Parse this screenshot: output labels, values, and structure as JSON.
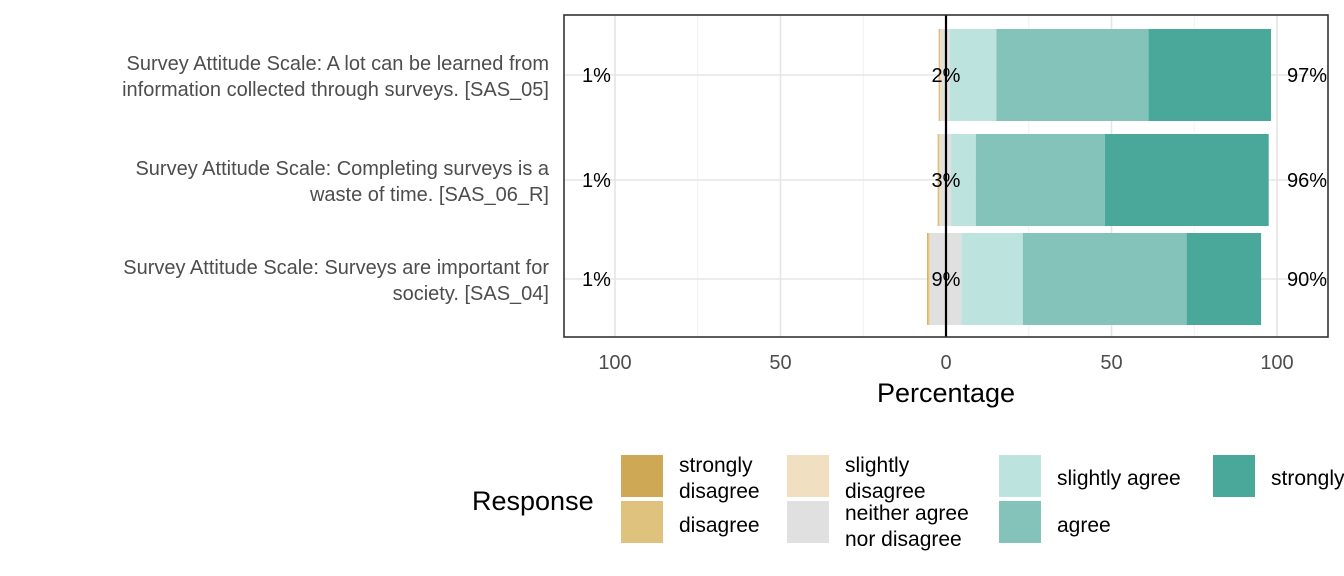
{
  "chart_data": {
    "type": "bar",
    "orientation": "horizontal",
    "stacking": "diverging",
    "xlabel": "Percentage",
    "x_tick_labels": [
      "100",
      "50",
      "0",
      "50",
      "100"
    ],
    "x_ticks": [
      -100,
      -50,
      0,
      50,
      100
    ],
    "xlim": [
      -100,
      100
    ],
    "grid": true,
    "legend": {
      "title": "Response",
      "position": "bottom",
      "entries": [
        {
          "label": "strongly disagree",
          "color": "#cfa855"
        },
        {
          "label": "disagree",
          "color": "#dfc27d"
        },
        {
          "label": "slightly disagree",
          "color": "#f0dfc1"
        },
        {
          "label": "neither agree nor disagree",
          "color": "#e0e0e0"
        },
        {
          "label": "slightly agree",
          "color": "#bde3df"
        },
        {
          "label": "agree",
          "color": "#84c3b9"
        },
        {
          "label": "strongly",
          "color": "#4aa89a"
        }
      ]
    },
    "categories": [
      "Survey Attitude Scale: A lot can be learned from information collected through surveys. [SAS_05]",
      "Survey Attitude Scale: Completing surveys is a waste of time. [SAS_06_R]",
      "Survey Attitude Scale: Surveys are important for society. [SAS_04]"
    ],
    "category_lines": [
      [
        "Survey Attitude Scale: A lot can be learned from",
        "information collected through surveys. [SAS_05]"
      ],
      [
        "Survey Attitude Scale: Completing surveys is a",
        "waste of time. [SAS_06_R]"
      ],
      [
        "Survey Attitude Scale: Surveys are important for",
        "society. [SAS_04]"
      ]
    ],
    "series": [
      {
        "name": "strongly disagree",
        "values": [
          0.2,
          0.2,
          0.3
        ]
      },
      {
        "name": "disagree",
        "values": [
          0.2,
          0.3,
          0.4
        ]
      },
      {
        "name": "slightly disagree",
        "values": [
          0.6,
          0.5,
          0.3
        ]
      },
      {
        "name": "neither agree nor disagree",
        "values": [
          2.4,
          3.0,
          9.4
        ]
      },
      {
        "name": "slightly agree",
        "values": [
          14.0,
          7.5,
          18.5
        ]
      },
      {
        "name": "agree",
        "values": [
          46.0,
          39.0,
          49.5
        ]
      },
      {
        "name": "strongly",
        "values": [
          37.0,
          49.5,
          22.5
        ]
      }
    ],
    "left_labels": [
      "1%",
      "1%",
      "1%"
    ],
    "center_labels": [
      "2%",
      "3%",
      "9%"
    ],
    "right_labels": [
      "97%",
      "96%",
      "90%"
    ]
  }
}
